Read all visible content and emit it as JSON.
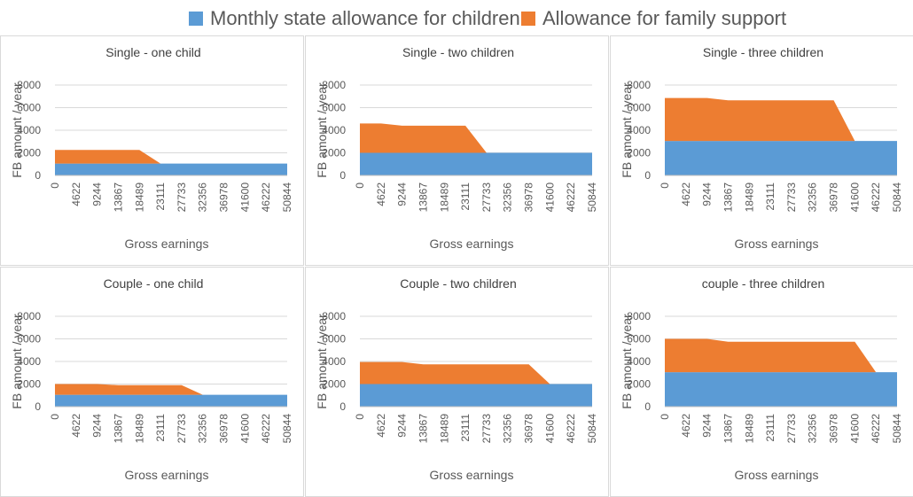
{
  "legend": [
    {
      "label": "Monthly state allowance for children",
      "color": "#5b9bd5"
    },
    {
      "label": "Allowance for family support",
      "color": "#ed7d31"
    }
  ],
  "chart_data": [
    {
      "type": "area",
      "title": "Single - one child",
      "xlabel": "Gross earnings",
      "ylabel": "FB amount / year",
      "categories": [
        "0",
        "4622",
        "9244",
        "13867",
        "18489",
        "23111",
        "27733",
        "32356",
        "36978",
        "41600",
        "46222",
        "50844"
      ],
      "yticks": [
        "0",
        "2000",
        "4000",
        "6000",
        "8000"
      ],
      "ylim": [
        0,
        8000
      ],
      "stacked": true,
      "series": [
        {
          "name": "Monthly state allowance for children",
          "values": [
            1050,
            1050,
            1050,
            1050,
            1050,
            1050,
            1050,
            1050,
            1050,
            1050,
            1050,
            1050
          ]
        },
        {
          "name": "Allowance for family support",
          "values": [
            1200,
            1200,
            1200,
            1200,
            1200,
            0,
            0,
            0,
            0,
            0,
            0,
            0
          ]
        }
      ]
    },
    {
      "type": "area",
      "title": "Single - two children",
      "xlabel": "Gross earnings",
      "ylabel": "FB amount / year",
      "categories": [
        "0",
        "4622",
        "9244",
        "13867",
        "18489",
        "23111",
        "27733",
        "32356",
        "36978",
        "41600",
        "46222",
        "50844"
      ],
      "yticks": [
        "0",
        "2000",
        "4000",
        "6000",
        "8000"
      ],
      "ylim": [
        0,
        8000
      ],
      "stacked": true,
      "series": [
        {
          "name": "Monthly state allowance for children",
          "values": [
            2000,
            2000,
            2000,
            2000,
            2000,
            2000,
            2000,
            2000,
            2000,
            2000,
            2000,
            2000
          ]
        },
        {
          "name": "Allowance for family support",
          "values": [
            2600,
            2600,
            2400,
            2400,
            2400,
            2400,
            0,
            0,
            0,
            0,
            0,
            0
          ]
        }
      ]
    },
    {
      "type": "area",
      "title": "Single - three children",
      "xlabel": "Gross earnings",
      "ylabel": "FB amount / year",
      "categories": [
        "0",
        "4622",
        "9244",
        "13867",
        "18489",
        "23111",
        "27733",
        "32356",
        "36978",
        "41600",
        "46222",
        "50844"
      ],
      "yticks": [
        "0",
        "2000",
        "4000",
        "6000",
        "8000"
      ],
      "ylim": [
        0,
        8000
      ],
      "stacked": true,
      "series": [
        {
          "name": "Monthly state allowance for children",
          "values": [
            3050,
            3050,
            3050,
            3050,
            3050,
            3050,
            3050,
            3050,
            3050,
            3050,
            3050,
            3050
          ]
        },
        {
          "name": "Allowance for family support",
          "values": [
            3800,
            3800,
            3800,
            3600,
            3600,
            3600,
            3600,
            3600,
            3600,
            0,
            0,
            0
          ]
        }
      ]
    },
    {
      "type": "area",
      "title": "Couple - one child",
      "xlabel": "Gross earnings",
      "ylabel": "FB amount / year",
      "categories": [
        "0",
        "4622",
        "9244",
        "13867",
        "18489",
        "23111",
        "27733",
        "32356",
        "36978",
        "41600",
        "46222",
        "50844"
      ],
      "yticks": [
        "0",
        "2000",
        "4000",
        "6000",
        "8000"
      ],
      "ylim": [
        0,
        8000
      ],
      "stacked": true,
      "series": [
        {
          "name": "Monthly state allowance for children",
          "values": [
            1050,
            1050,
            1050,
            1050,
            1050,
            1050,
            1050,
            1050,
            1050,
            1050,
            1050,
            1050
          ]
        },
        {
          "name": "Allowance for family support",
          "values": [
            950,
            950,
            950,
            850,
            850,
            850,
            850,
            0,
            0,
            0,
            0,
            0
          ]
        }
      ]
    },
    {
      "type": "area",
      "title": "Couple - two children",
      "xlabel": "Gross earnings",
      "ylabel": "FB amount / year",
      "categories": [
        "0",
        "4622",
        "9244",
        "13867",
        "18489",
        "23111",
        "27733",
        "32356",
        "36978",
        "41600",
        "46222",
        "50844"
      ],
      "yticks": [
        "0",
        "2000",
        "4000",
        "6000",
        "8000"
      ],
      "ylim": [
        0,
        8000
      ],
      "stacked": true,
      "series": [
        {
          "name": "Monthly state allowance for children",
          "values": [
            2000,
            2000,
            2000,
            2000,
            2000,
            2000,
            2000,
            2000,
            2000,
            2000,
            2000,
            2000
          ]
        },
        {
          "name": "Allowance for family support",
          "values": [
            1950,
            1950,
            1950,
            1750,
            1750,
            1750,
            1750,
            1750,
            1750,
            0,
            0,
            0
          ]
        }
      ]
    },
    {
      "type": "area",
      "title": "couple - three children",
      "xlabel": "Gross earnings",
      "ylabel": "FB amount / year",
      "categories": [
        "0",
        "4622",
        "9244",
        "13867",
        "18489",
        "23111",
        "27733",
        "32356",
        "36978",
        "41600",
        "46222",
        "50844"
      ],
      "yticks": [
        "0",
        "2000",
        "4000",
        "6000",
        "8000"
      ],
      "ylim": [
        0,
        8000
      ],
      "stacked": true,
      "series": [
        {
          "name": "Monthly state allowance for children",
          "values": [
            3050,
            3050,
            3050,
            3050,
            3050,
            3050,
            3050,
            3050,
            3050,
            3050,
            3050,
            3050
          ]
        },
        {
          "name": "Allowance for family support",
          "values": [
            2950,
            2950,
            2950,
            2700,
            2700,
            2700,
            2700,
            2700,
            2700,
            2700,
            0,
            0
          ]
        }
      ]
    }
  ]
}
